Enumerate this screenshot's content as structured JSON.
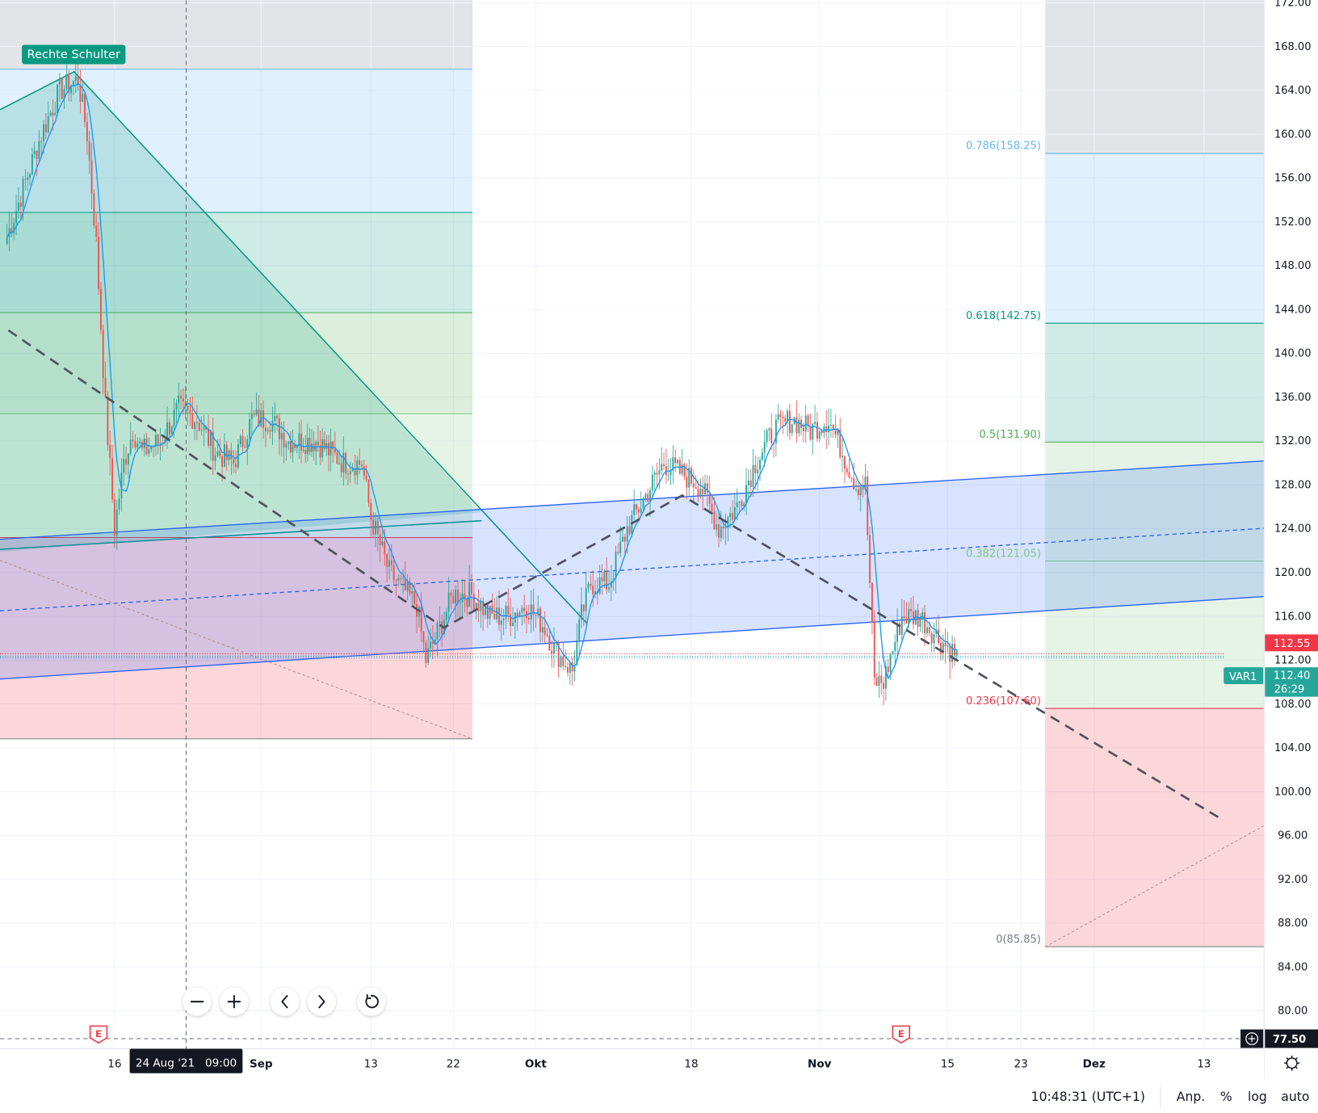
{
  "colors": {
    "up": "#26a69a",
    "down": "#ef5350",
    "ma": "#2196f3",
    "channel": "#2962ff",
    "teal": "#089981",
    "grey_zone": "#e3e4e8",
    "last_price_bg": "#26a69a",
    "prev_price_bg": "#f23645"
  },
  "pattern_label": "Rechte Schulter",
  "fib_right": [
    {
      "label": "0.786(158.25)",
      "price": 158.25,
      "color": "#64b5f6"
    },
    {
      "label": "0.618(142.75)",
      "price": 142.75,
      "color": "#089981"
    },
    {
      "label": "0.5(131.90)",
      "price": 131.9,
      "color": "#4caf50"
    },
    {
      "label": "0.382(121.05)",
      "price": 121.05,
      "color": "#81c784"
    },
    {
      "label": "0.236(107.60)",
      "price": 107.6,
      "color": "#f23645"
    },
    {
      "label": "0(85.85)",
      "price": 85.85,
      "color": "#787b86"
    }
  ],
  "price_axis": {
    "ticks": [
      "172.00",
      "168.00",
      "164.00",
      "160.00",
      "156.00",
      "152.00",
      "148.00",
      "144.00",
      "140.00",
      "136.00",
      "132.00",
      "128.00",
      "124.00",
      "120.00",
      "116.00",
      "112.00",
      "108.00",
      "104.00",
      "100.00",
      "96.00",
      "92.00",
      "88.00",
      "84.00",
      "80.00"
    ],
    "prev_close_label": "112.55",
    "last_price_label": "112.40",
    "countdown": "26:29",
    "symbol_tag": "VAR1",
    "crosshair_price": "77.50"
  },
  "time_axis": {
    "ticks": [
      {
        "label": "16",
        "date": "2021-08-16",
        "bold": false
      },
      {
        "label": "Sep",
        "date": "2021-09-01",
        "bold": true
      },
      {
        "label": "13",
        "date": "2021-09-13",
        "bold": false
      },
      {
        "label": "22",
        "date": "2021-09-22",
        "bold": false
      },
      {
        "label": "Okt",
        "date": "2021-10-01",
        "bold": true
      },
      {
        "label": "18",
        "date": "2021-10-18",
        "bold": false
      },
      {
        "label": "Nov",
        "date": "2021-11-01",
        "bold": true
      },
      {
        "label": "15",
        "date": "2021-11-15",
        "bold": false
      },
      {
        "label": "23",
        "date": "2021-11-23",
        "bold": false
      },
      {
        "label": "Dez",
        "date": "2021-12-01",
        "bold": true
      },
      {
        "label": "13",
        "date": "2021-12-13",
        "bold": false
      }
    ],
    "crosshair_label": "24 Aug '21   09:00"
  },
  "earnings_markers": [
    {
      "label": "E",
      "date": "2021-08-14"
    },
    {
      "label": "E",
      "date": "2021-11-10"
    }
  ],
  "nav_buttons": [
    {
      "name": "zoom-out-button",
      "icon": "minus-icon"
    },
    {
      "name": "zoom-in-button",
      "icon": "plus-icon"
    },
    {
      "name": "scroll-left-button",
      "icon": "chevron-left-icon"
    },
    {
      "name": "scroll-right-button",
      "icon": "chevron-right-icon"
    },
    {
      "name": "reset-button",
      "icon": "reset-icon"
    }
  ],
  "status_bar": {
    "clock": "10:48:31 (UTC+1)",
    "adjust": "Anp.",
    "percent": "%",
    "log": "log",
    "auto": "auto"
  },
  "chart_data": {
    "type": "candlestick",
    "ylim": [
      77.5,
      172
    ],
    "price_series": [
      [
        "2021-08-04",
        150
      ],
      [
        "2021-08-06",
        155
      ],
      [
        "2021-08-08",
        160
      ],
      [
        "2021-08-10",
        164
      ],
      [
        "2021-08-12",
        165
      ],
      [
        "2021-08-13",
        160
      ],
      [
        "2021-08-14",
        150
      ],
      [
        "2021-08-15",
        135
      ],
      [
        "2021-08-16",
        124
      ],
      [
        "2021-08-17",
        130
      ],
      [
        "2021-08-18",
        133
      ],
      [
        "2021-08-19",
        131
      ],
      [
        "2021-08-21",
        132
      ],
      [
        "2021-08-23",
        135
      ],
      [
        "2021-08-25",
        134
      ],
      [
        "2021-08-27",
        131
      ],
      [
        "2021-08-29",
        130
      ],
      [
        "2021-08-31",
        134
      ],
      [
        "2021-09-02",
        134
      ],
      [
        "2021-09-04",
        132
      ],
      [
        "2021-09-07",
        132
      ],
      [
        "2021-09-10",
        130
      ],
      [
        "2021-09-12",
        130
      ],
      [
        "2021-09-13",
        125
      ],
      [
        "2021-09-15",
        120
      ],
      [
        "2021-09-17",
        118
      ],
      [
        "2021-09-18",
        117
      ],
      [
        "2021-09-19",
        112
      ],
      [
        "2021-09-20",
        114
      ],
      [
        "2021-09-22",
        118
      ],
      [
        "2021-09-24",
        118
      ],
      [
        "2021-09-26",
        116
      ],
      [
        "2021-09-28",
        116
      ],
      [
        "2021-09-30",
        117
      ],
      [
        "2021-10-02",
        115
      ],
      [
        "2021-10-03",
        113
      ],
      [
        "2021-10-05",
        111
      ],
      [
        "2021-10-06",
        116
      ],
      [
        "2021-10-07",
        119
      ],
      [
        "2021-10-09",
        119
      ],
      [
        "2021-10-11",
        124
      ],
      [
        "2021-10-13",
        127
      ],
      [
        "2021-10-15",
        130
      ],
      [
        "2021-10-17",
        129
      ],
      [
        "2021-10-19",
        128
      ],
      [
        "2021-10-21",
        124
      ],
      [
        "2021-10-23",
        126
      ],
      [
        "2021-10-25",
        130
      ],
      [
        "2021-10-27",
        133
      ],
      [
        "2021-10-29",
        134
      ],
      [
        "2021-10-31",
        133
      ],
      [
        "2021-11-02",
        134
      ],
      [
        "2021-11-03",
        132
      ],
      [
        "2021-11-05",
        128
      ],
      [
        "2021-11-06",
        128
      ],
      [
        "2021-11-07",
        110
      ],
      [
        "2021-11-08",
        110
      ],
      [
        "2021-11-10",
        116
      ],
      [
        "2021-11-12",
        116
      ],
      [
        "2021-11-14",
        114
      ],
      [
        "2021-11-16",
        112.4
      ]
    ]
  }
}
